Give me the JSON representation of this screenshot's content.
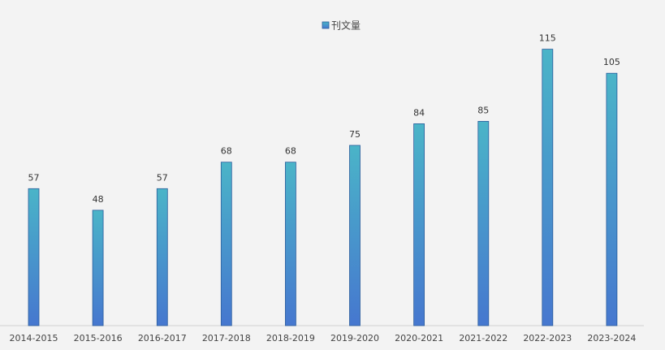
{
  "chart_data": {
    "type": "bar",
    "categories": [
      "2014-2015",
      "2015-2016",
      "2016-2017",
      "2017-2018",
      "2018-2019",
      "2019-2020",
      "2020-2021",
      "2021-2022",
      "2022-2023",
      "2023-2024"
    ],
    "series": [
      {
        "name": "刊文量",
        "values": [
          57,
          48,
          57,
          68,
          68,
          75,
          84,
          85,
          115,
          105
        ]
      }
    ],
    "ylim": [
      0,
      125
    ],
    "grid": false,
    "legend_position": "top-center",
    "colors": {
      "bar_top": "#4ab4c8",
      "bar_bottom": "#4677cf",
      "bar_stroke": "#2b5d9c",
      "axis": "#d0d0d0",
      "background": "#f3f3f3"
    }
  }
}
